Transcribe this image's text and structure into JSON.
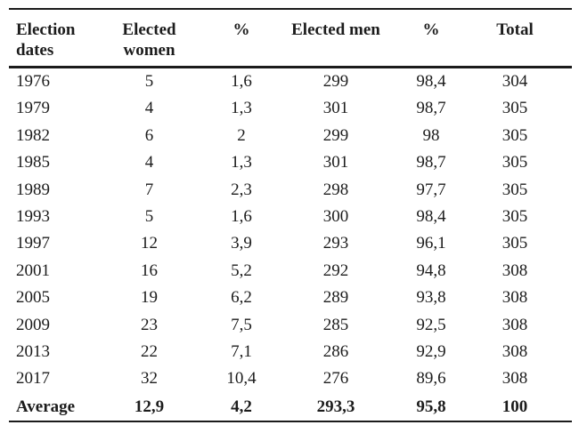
{
  "page": {
    "background": "#ffffff",
    "text_color": "#1c1c1c",
    "rule_color": "#1b1b1b"
  },
  "table": {
    "header_lines": [
      [
        "Election",
        "dates"
      ],
      [
        "Elected",
        "women"
      ],
      [
        "%"
      ],
      [
        "Elected men"
      ],
      [
        "%"
      ],
      [
        "Total"
      ]
    ],
    "rows": [
      [
        "1976",
        "5",
        "1,6",
        "299",
        "98,4",
        "304"
      ],
      [
        "1979",
        "4",
        "1,3",
        "301",
        "98,7",
        "305"
      ],
      [
        "1982",
        "6",
        "2",
        "299",
        "98",
        "305"
      ],
      [
        "1985",
        "4",
        "1,3",
        "301",
        "98,7",
        "305"
      ],
      [
        "1989",
        "7",
        "2,3",
        "298",
        "97,7",
        "305"
      ],
      [
        "1993",
        "5",
        "1,6",
        "300",
        "98,4",
        "305"
      ],
      [
        "1997",
        "12",
        "3,9",
        "293",
        "96,1",
        "305"
      ],
      [
        "2001",
        "16",
        "5,2",
        "292",
        "94,8",
        "308"
      ],
      [
        "2005",
        "19",
        "6,2",
        "289",
        "93,8",
        "308"
      ],
      [
        "2009",
        "23",
        "7,5",
        "285",
        "92,5",
        "308"
      ],
      [
        "2013",
        "22",
        "7,1",
        "286",
        "92,9",
        "308"
      ],
      [
        "2017",
        "32",
        "10,4",
        "276",
        "89,6",
        "308"
      ]
    ],
    "average_row": [
      "Average",
      "12,9",
      "4,2",
      "293,3",
      "95,8",
      "100"
    ]
  }
}
